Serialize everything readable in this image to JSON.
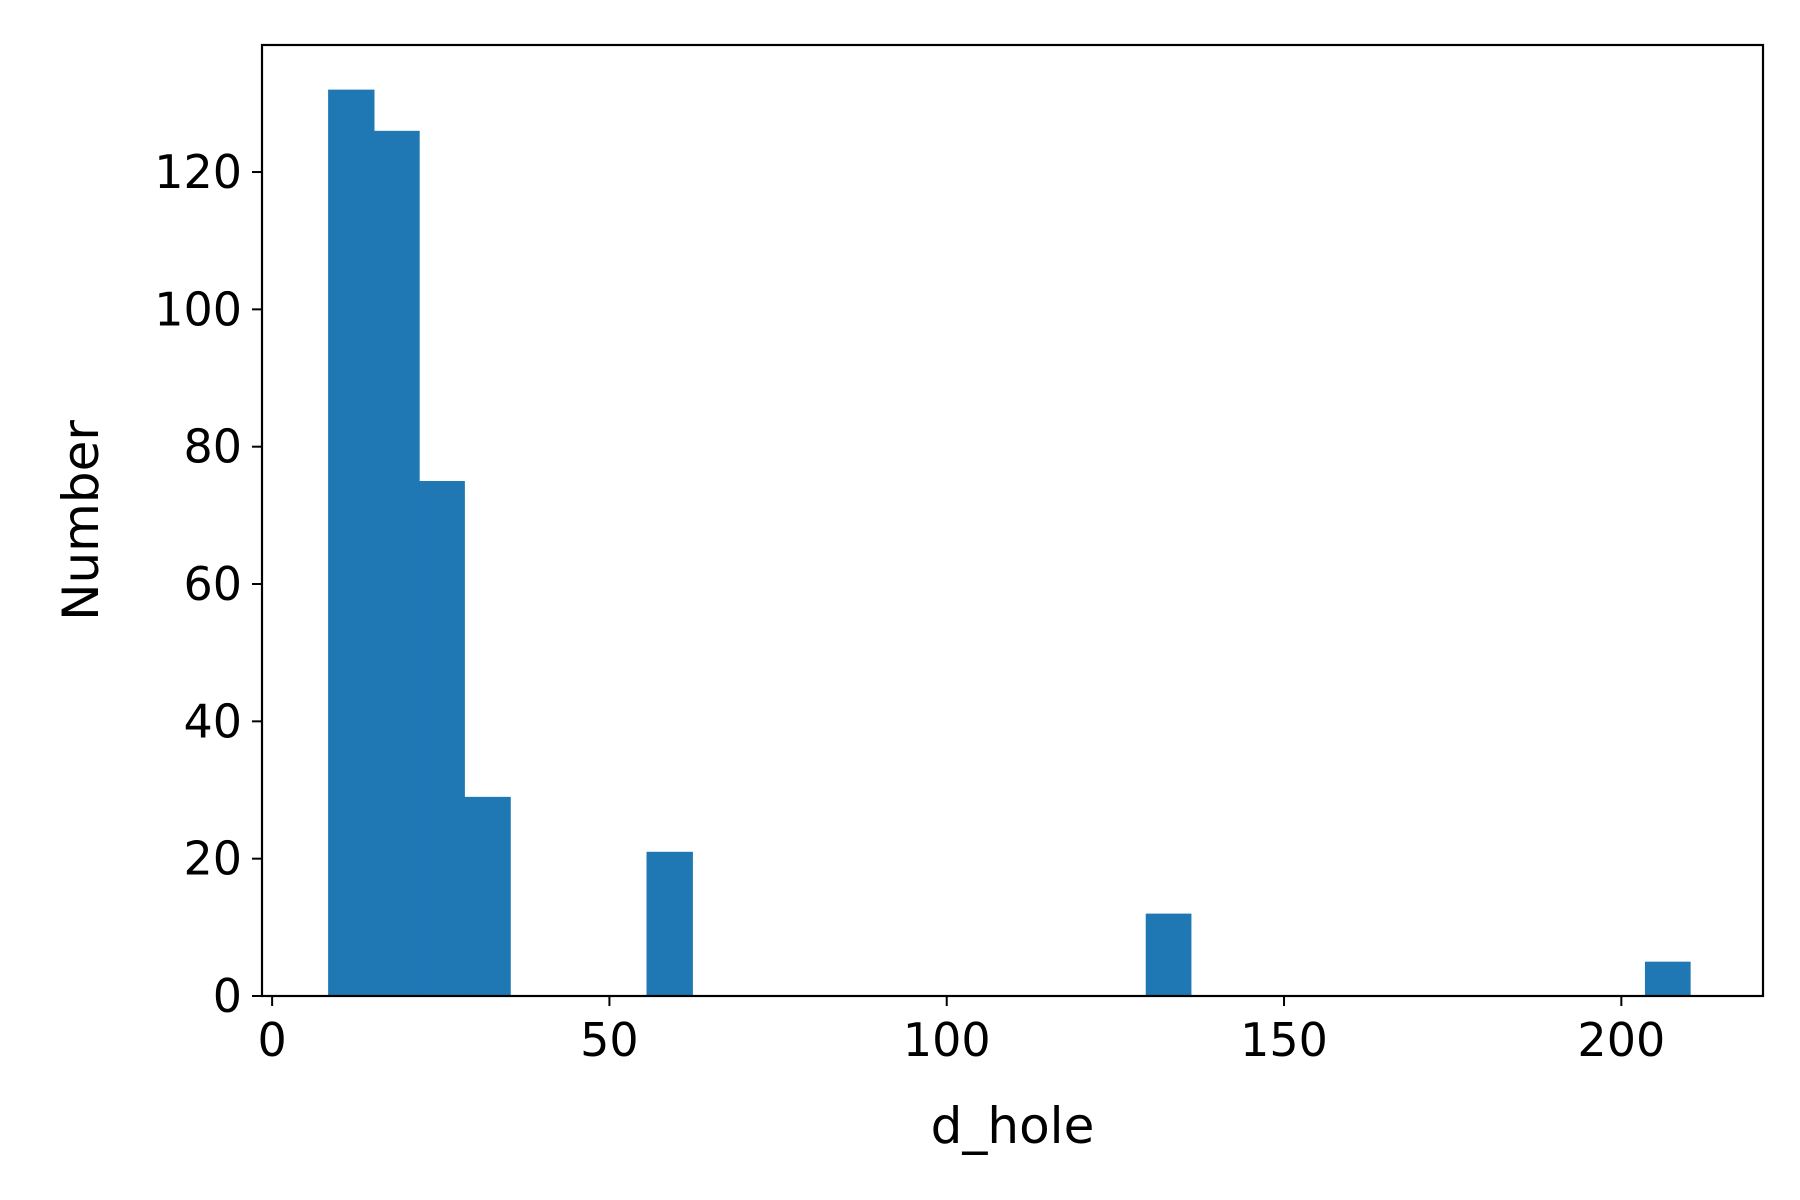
{
  "chart_data": {
    "type": "bar",
    "xlabel": "d_hole",
    "ylabel": "Number",
    "xlim": [
      -1.5,
      221
    ],
    "ylim": [
      0,
      138.5
    ],
    "xticks": [
      0,
      50,
      100,
      150,
      200
    ],
    "yticks": [
      0,
      20,
      40,
      60,
      80,
      100,
      120
    ],
    "bars": [
      {
        "x0": 8.3,
        "x1": 15.1,
        "value": 132
      },
      {
        "x0": 15.1,
        "x1": 21.8,
        "value": 126
      },
      {
        "x0": 21.8,
        "x1": 28.5,
        "value": 75
      },
      {
        "x0": 28.5,
        "x1": 35.3,
        "value": 29
      },
      {
        "x0": 55.5,
        "x1": 62.3,
        "value": 21
      },
      {
        "x0": 129.5,
        "x1": 136.2,
        "value": 12
      },
      {
        "x0": 203.5,
        "x1": 210.2,
        "value": 5
      }
    ],
    "grid": false,
    "color": "#1f77b4"
  }
}
